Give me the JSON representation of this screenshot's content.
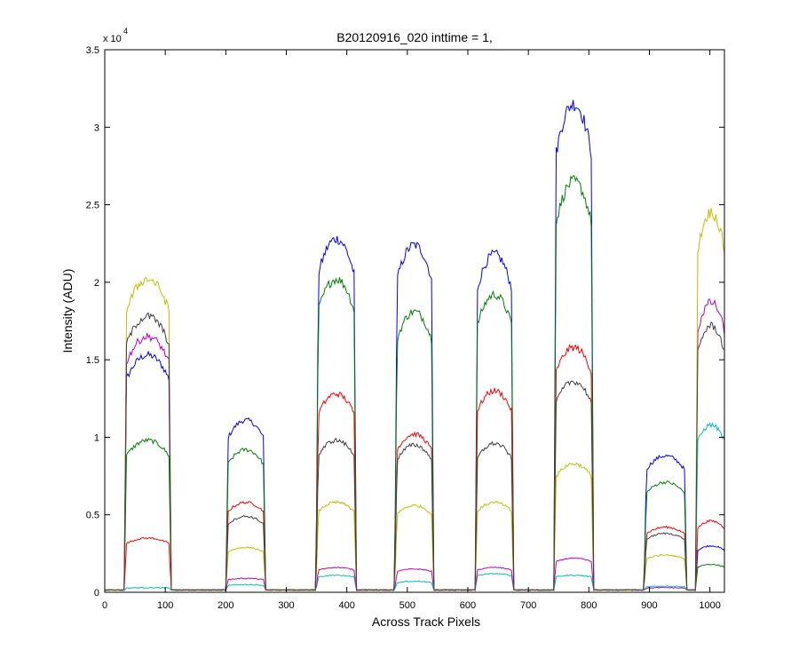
{
  "chart_data": {
    "type": "line",
    "title": "B20120916_020 inttime = 1,",
    "xlabel": "Across Track Pixels",
    "ylabel": "Intensity (ADU)",
    "y_scale_label": "x 10",
    "y_scale_exponent": "4",
    "xlim": [
      0,
      1024
    ],
    "ylim": [
      0,
      35000
    ],
    "x_ticks": [
      0,
      100,
      200,
      300,
      400,
      500,
      600,
      700,
      800,
      900,
      1000
    ],
    "y_ticks": [
      0,
      5000,
      10000,
      15000,
      20000,
      25000,
      30000,
      35000
    ],
    "y_tick_labels": [
      "0",
      "0.5",
      "1",
      "1.5",
      "2",
      "2.5",
      "3",
      "3.5"
    ],
    "grid": false,
    "legend": "none",
    "baseline": 150,
    "blocks": [
      {
        "x0": 36,
        "x1": 106
      },
      {
        "x0": 204,
        "x1": 262
      },
      {
        "x0": 353,
        "x1": 412
      },
      {
        "x0": 483,
        "x1": 540
      },
      {
        "x0": 616,
        "x1": 672
      },
      {
        "x0": 746,
        "x1": 804
      },
      {
        "x0": 895,
        "x1": 958
      },
      {
        "x0": 980,
        "x1": 1024
      }
    ],
    "series": [
      {
        "color": "#0000ff",
        "levels": [
          15300,
          11100,
          22800,
          22400,
          21800,
          31500,
          8800,
          3000
        ]
      },
      {
        "color": "#008000",
        "levels": [
          9800,
          9200,
          20200,
          18100,
          19200,
          26500,
          7100,
          1800
        ]
      },
      {
        "color": "#ff0000",
        "levels": [
          3500,
          5800,
          12800,
          10200,
          13000,
          15800,
          4200,
          4600
        ]
      },
      {
        "color": "#00bfbf",
        "levels": [
          300,
          500,
          1100,
          700,
          1200,
          1100,
          400,
          10800
        ]
      },
      {
        "color": "#bf00bf",
        "levels": [
          16500,
          900,
          1600,
          1500,
          1600,
          2200,
          300,
          18700
        ]
      },
      {
        "color": "#bfbf00",
        "levels": [
          20200,
          2900,
          5800,
          5600,
          5800,
          8300,
          2400,
          24500
        ]
      },
      {
        "color": "#404040",
        "levels": [
          17800,
          4900,
          9800,
          9500,
          9600,
          13600,
          3800,
          17200
        ]
      }
    ]
  }
}
